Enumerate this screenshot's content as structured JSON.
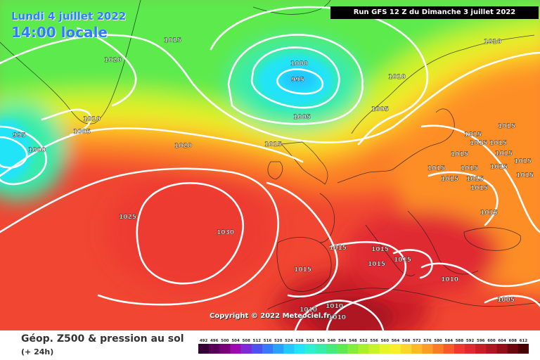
{
  "header": {
    "date": "Lundi 4 juillet 2022",
    "time": "14:00 locale",
    "run": "Run GFS 12 Z du Dimanche 3 juillet 2022"
  },
  "copyright": "Copyright © 2022 Meteociel.fr",
  "legend": {
    "title": "Géop. Z500 & pression au sol",
    "subtitle": "(+ 24h)",
    "scale": [
      "492",
      "496",
      "500",
      "504",
      "508",
      "512",
      "516",
      "520",
      "524",
      "528",
      "532",
      "536",
      "540",
      "544",
      "548",
      "552",
      "556",
      "560",
      "564",
      "568",
      "572",
      "576",
      "580",
      "584",
      "588",
      "592",
      "596",
      "600",
      "604",
      "608",
      "612"
    ],
    "colors": [
      "#350035",
      "#560056",
      "#7a007a",
      "#9e0ab0",
      "#7e2ad8",
      "#5050f0",
      "#3a78ff",
      "#2aa0ff",
      "#22c8ff",
      "#22e4f8",
      "#2ef0d0",
      "#38ecaa",
      "#44ea7c",
      "#5cea4e",
      "#86ec3a",
      "#aaef2e",
      "#caf22a",
      "#e6f52a",
      "#f8ee2a",
      "#fcd62a",
      "#fdba28",
      "#fd9c26",
      "#fb7c26",
      "#f85a2a",
      "#f03a30",
      "#e02a30",
      "#c81e26",
      "#ae1620",
      "#940e1a",
      "#6e0810",
      "#460006"
    ]
  },
  "isobars": [
    {
      "label": "1015",
      "pos": "north-atlantic"
    },
    {
      "label": "1020",
      "pos": "labrador-sea"
    },
    {
      "label": "1000",
      "pos": "iceland-low-inner"
    },
    {
      "label": "995",
      "pos": "iceland-low-center"
    },
    {
      "label": "1010",
      "pos": "norwegian-sea"
    },
    {
      "label": "1010",
      "pos": "north-finland"
    },
    {
      "label": "1005",
      "pos": "scandinavia"
    },
    {
      "label": "1005",
      "pos": "iceland-low-outer"
    },
    {
      "label": "1010",
      "pos": "greenland-south"
    },
    {
      "label": "1005",
      "pos": "greenland-south-inner"
    },
    {
      "label": "995",
      "pos": "canada-low"
    },
    {
      "label": "1000",
      "pos": "canada-low-outer"
    },
    {
      "label": "1020",
      "pos": "mid-atlantic"
    },
    {
      "label": "1015",
      "pos": "uk-approaches"
    },
    {
      "label": "1025",
      "pos": "azores-high-outer"
    },
    {
      "label": "1030",
      "pos": "azores-high-inner"
    },
    {
      "label": "1015",
      "pos": "europe-1"
    },
    {
      "label": "1015",
      "pos": "europe-2"
    },
    {
      "label": "1015",
      "pos": "europe-3"
    },
    {
      "label": "1015",
      "pos": "europe-4"
    },
    {
      "label": "1015",
      "pos": "europe-5"
    },
    {
      "label": "1015",
      "pos": "europe-6"
    },
    {
      "label": "1015",
      "pos": "europe-7"
    },
    {
      "label": "1015",
      "pos": "europe-8"
    },
    {
      "label": "1015",
      "pos": "europe-9"
    },
    {
      "label": "1015",
      "pos": "europe-10"
    },
    {
      "label": "1015",
      "pos": "europe-11"
    },
    {
      "label": "1015",
      "pos": "russia-1"
    },
    {
      "label": "1015",
      "pos": "russia-2"
    },
    {
      "label": "1015",
      "pos": "russia-3"
    },
    {
      "label": "1015",
      "pos": "balkans"
    },
    {
      "label": "1015",
      "pos": "iberia"
    },
    {
      "label": "1015",
      "pos": "med-1"
    },
    {
      "label": "1015",
      "pos": "med-2"
    },
    {
      "label": "1015",
      "pos": "med-3"
    },
    {
      "label": "1015",
      "pos": "med-4"
    },
    {
      "label": "1010",
      "pos": "aegean"
    },
    {
      "label": "1005",
      "pos": "turkey"
    },
    {
      "label": "1010",
      "pos": "sahara-1"
    },
    {
      "label": "1010",
      "pos": "sahara-2"
    },
    {
      "label": "1010",
      "pos": "sahara-3"
    }
  ]
}
